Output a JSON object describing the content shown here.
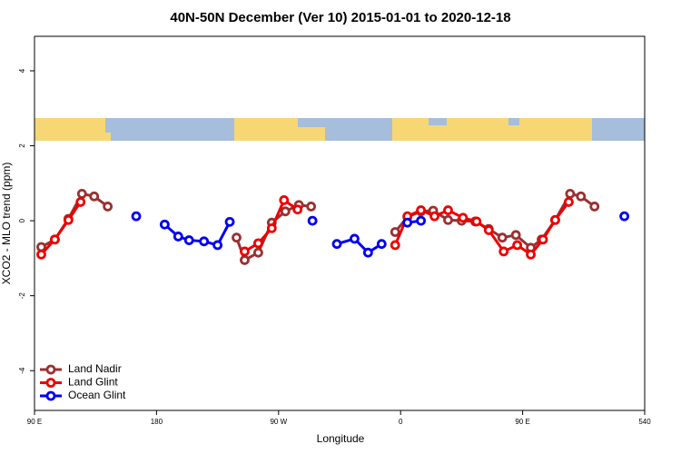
{
  "chart_data": {
    "type": "line",
    "title": "40N-50N December (Ver 10)   2015-01-01 to 2020-12-18",
    "x_label": "Longitude",
    "y_label": "XCO2 - MLO trend (ppm)",
    "xlim": [
      90,
      540
    ],
    "ylim": [
      -5.06,
      4.92
    ],
    "xticks": [
      {
        "value": 90,
        "label": "90 E"
      },
      180,
      {
        "value": 270,
        "label": "90 W"
      },
      {
        "value": 360,
        "label": "0"
      },
      {
        "value": 450,
        "label": "90 E"
      },
      540
    ],
    "yticks": [
      -4,
      -2,
      0,
      2,
      4
    ],
    "legend": "bottom-left",
    "series": [
      {
        "name": "Land Nadir",
        "color": "#9b3030",
        "x": [
          95,
          105,
          115,
          125,
          134,
          144,
          null,
          239,
          245,
          255,
          265,
          275,
          285,
          294,
          null,
          356,
          365,
          375,
          384,
          395,
          405,
          415,
          425,
          435,
          445,
          456,
          464,
          474,
          485,
          493,
          503
        ],
        "values": [
          -0.7,
          -0.5,
          0.05,
          0.72,
          0.65,
          0.38,
          null,
          -0.45,
          -1.05,
          -0.85,
          -0.05,
          0.25,
          0.42,
          0.38,
          null,
          -0.3,
          0.1,
          0.25,
          0.27,
          0.02,
          0.0,
          -0.02,
          -0.22,
          -0.45,
          -0.38,
          -0.72,
          -0.5,
          0.02,
          0.72,
          0.65,
          0.38
        ]
      },
      {
        "name": "Land Glint",
        "color": "#ee0000",
        "x": [
          95,
          105,
          115,
          124,
          null,
          245,
          255,
          265,
          274,
          284,
          null,
          356,
          365,
          375,
          385,
          395,
          406,
          416,
          425,
          436,
          446,
          456,
          465,
          474,
          484
        ],
        "values": [
          -0.9,
          -0.5,
          0.02,
          0.5,
          null,
          -0.82,
          -0.6,
          -0.2,
          0.55,
          0.3,
          null,
          -0.65,
          0.12,
          0.28,
          0.12,
          0.28,
          0.08,
          -0.02,
          -0.25,
          -0.82,
          -0.65,
          -0.9,
          -0.5,
          0.02,
          0.5
        ]
      },
      {
        "name": "Ocean Glint",
        "color": "#0000ee",
        "x": [
          165,
          null,
          186,
          196,
          204,
          215,
          225,
          234,
          null,
          295,
          null,
          313,
          326,
          336,
          346,
          null,
          365,
          375,
          null,
          525
        ],
        "values": [
          0.12,
          null,
          -0.1,
          -0.42,
          -0.52,
          -0.55,
          -0.65,
          -0.03,
          null,
          0.0,
          null,
          -0.62,
          -0.48,
          -0.85,
          -0.62,
          null,
          -0.05,
          0.0,
          null,
          0.12
        ]
      }
    ]
  }
}
